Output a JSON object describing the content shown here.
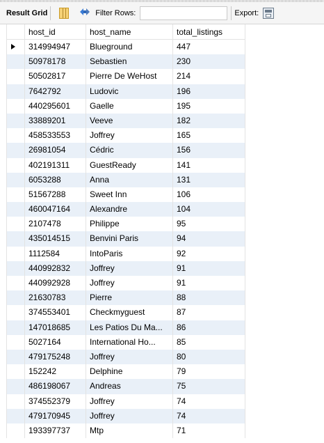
{
  "toolbar": {
    "result_grid_label": "Result Grid",
    "filter_rows_label": "Filter Rows:",
    "filter_rows_value": "",
    "export_label": "Export:",
    "icons": [
      "grid-layout-icon",
      "refresh-icon",
      "export-icon"
    ]
  },
  "grid": {
    "columns": [
      "host_id",
      "host_name",
      "total_listings"
    ],
    "selected_row_index": 0,
    "rows": [
      {
        "host_id": "314994947",
        "host_name": "Blueground",
        "total_listings": "447"
      },
      {
        "host_id": "50978178",
        "host_name": "Sebastien",
        "total_listings": "230"
      },
      {
        "host_id": "50502817",
        "host_name": "Pierre De WeHost",
        "total_listings": "214"
      },
      {
        "host_id": "7642792",
        "host_name": "Ludovic",
        "total_listings": "196"
      },
      {
        "host_id": "440295601",
        "host_name": "Gaelle",
        "total_listings": "195"
      },
      {
        "host_id": "33889201",
        "host_name": "Veeve",
        "total_listings": "182"
      },
      {
        "host_id": "458533553",
        "host_name": "Joffrey",
        "total_listings": "165"
      },
      {
        "host_id": "26981054",
        "host_name": "Cédric",
        "total_listings": "156"
      },
      {
        "host_id": "402191311",
        "host_name": "GuestReady",
        "total_listings": "141"
      },
      {
        "host_id": "6053288",
        "host_name": "Anna",
        "total_listings": "131"
      },
      {
        "host_id": "51567288",
        "host_name": "Sweet Inn",
        "total_listings": "106"
      },
      {
        "host_id": "460047164",
        "host_name": "Alexandre",
        "total_listings": "104"
      },
      {
        "host_id": "2107478",
        "host_name": "Philippe",
        "total_listings": "95"
      },
      {
        "host_id": "435014515",
        "host_name": "Benvini Paris",
        "total_listings": "94"
      },
      {
        "host_id": "1112584",
        "host_name": "IntoParis",
        "total_listings": "92"
      },
      {
        "host_id": "440992832",
        "host_name": "Joffrey",
        "total_listings": "91"
      },
      {
        "host_id": "440992928",
        "host_name": "Joffrey",
        "total_listings": "91"
      },
      {
        "host_id": "21630783",
        "host_name": "Pierre",
        "total_listings": "88"
      },
      {
        "host_id": "374553401",
        "host_name": "Checkmyguest",
        "total_listings": "87"
      },
      {
        "host_id": "147018685",
        "host_name": "Les Patios Du Ma...",
        "total_listings": "86"
      },
      {
        "host_id": "5027164",
        "host_name": "International Ho...",
        "total_listings": "85"
      },
      {
        "host_id": "479175248",
        "host_name": "Joffrey",
        "total_listings": "80"
      },
      {
        "host_id": "152242",
        "host_name": "Delphine",
        "total_listings": "79"
      },
      {
        "host_id": "486198067",
        "host_name": "Andreas",
        "total_listings": "75"
      },
      {
        "host_id": "374552379",
        "host_name": "Joffrey",
        "total_listings": "74"
      },
      {
        "host_id": "479170945",
        "host_name": "Joffrey",
        "total_listings": "74"
      },
      {
        "host_id": "193397737",
        "host_name": "Mtp",
        "total_listings": "71"
      }
    ]
  }
}
